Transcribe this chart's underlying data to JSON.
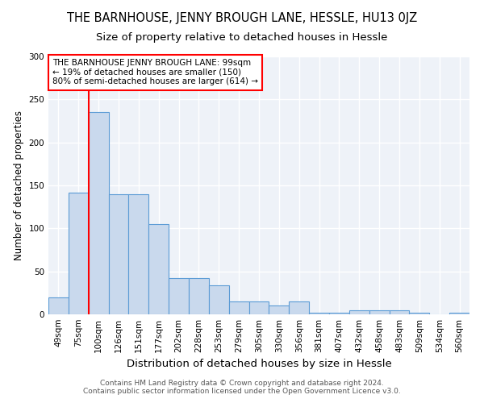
{
  "title": "THE BARNHOUSE, JENNY BROUGH LANE, HESSLE, HU13 0JZ",
  "subtitle": "Size of property relative to detached houses in Hessle",
  "xlabel": "Distribution of detached houses by size in Hessle",
  "ylabel": "Number of detached properties",
  "categories": [
    "49sqm",
    "75sqm",
    "100sqm",
    "126sqm",
    "151sqm",
    "177sqm",
    "202sqm",
    "228sqm",
    "253sqm",
    "279sqm",
    "305sqm",
    "330sqm",
    "356sqm",
    "381sqm",
    "407sqm",
    "432sqm",
    "458sqm",
    "483sqm",
    "509sqm",
    "534sqm",
    "560sqm"
  ],
  "values": [
    20,
    142,
    235,
    140,
    140,
    105,
    42,
    42,
    34,
    15,
    15,
    10,
    15,
    2,
    2,
    5,
    5,
    5,
    2,
    0,
    2
  ],
  "bar_color": "#c9d9ed",
  "bar_edge_color": "#5b9bd5",
  "bar_edge_width": 0.8,
  "red_line_index": 2,
  "annotation_text": "THE BARNHOUSE JENNY BROUGH LANE: 99sqm\n← 19% of detached houses are smaller (150)\n80% of semi-detached houses are larger (614) →",
  "annotation_box_color": "white",
  "annotation_box_edge_color": "red",
  "ylim": [
    0,
    300
  ],
  "yticks": [
    0,
    50,
    100,
    150,
    200,
    250,
    300
  ],
  "footer": "Contains HM Land Registry data © Crown copyright and database right 2024.\nContains public sector information licensed under the Open Government Licence v3.0.",
  "background_color": "#eef2f8",
  "grid_color": "white",
  "title_fontsize": 10.5,
  "subtitle_fontsize": 9.5,
  "xlabel_fontsize": 9.5,
  "ylabel_fontsize": 8.5,
  "tick_fontsize": 7.5,
  "annotation_fontsize": 7.5,
  "footer_fontsize": 6.5
}
